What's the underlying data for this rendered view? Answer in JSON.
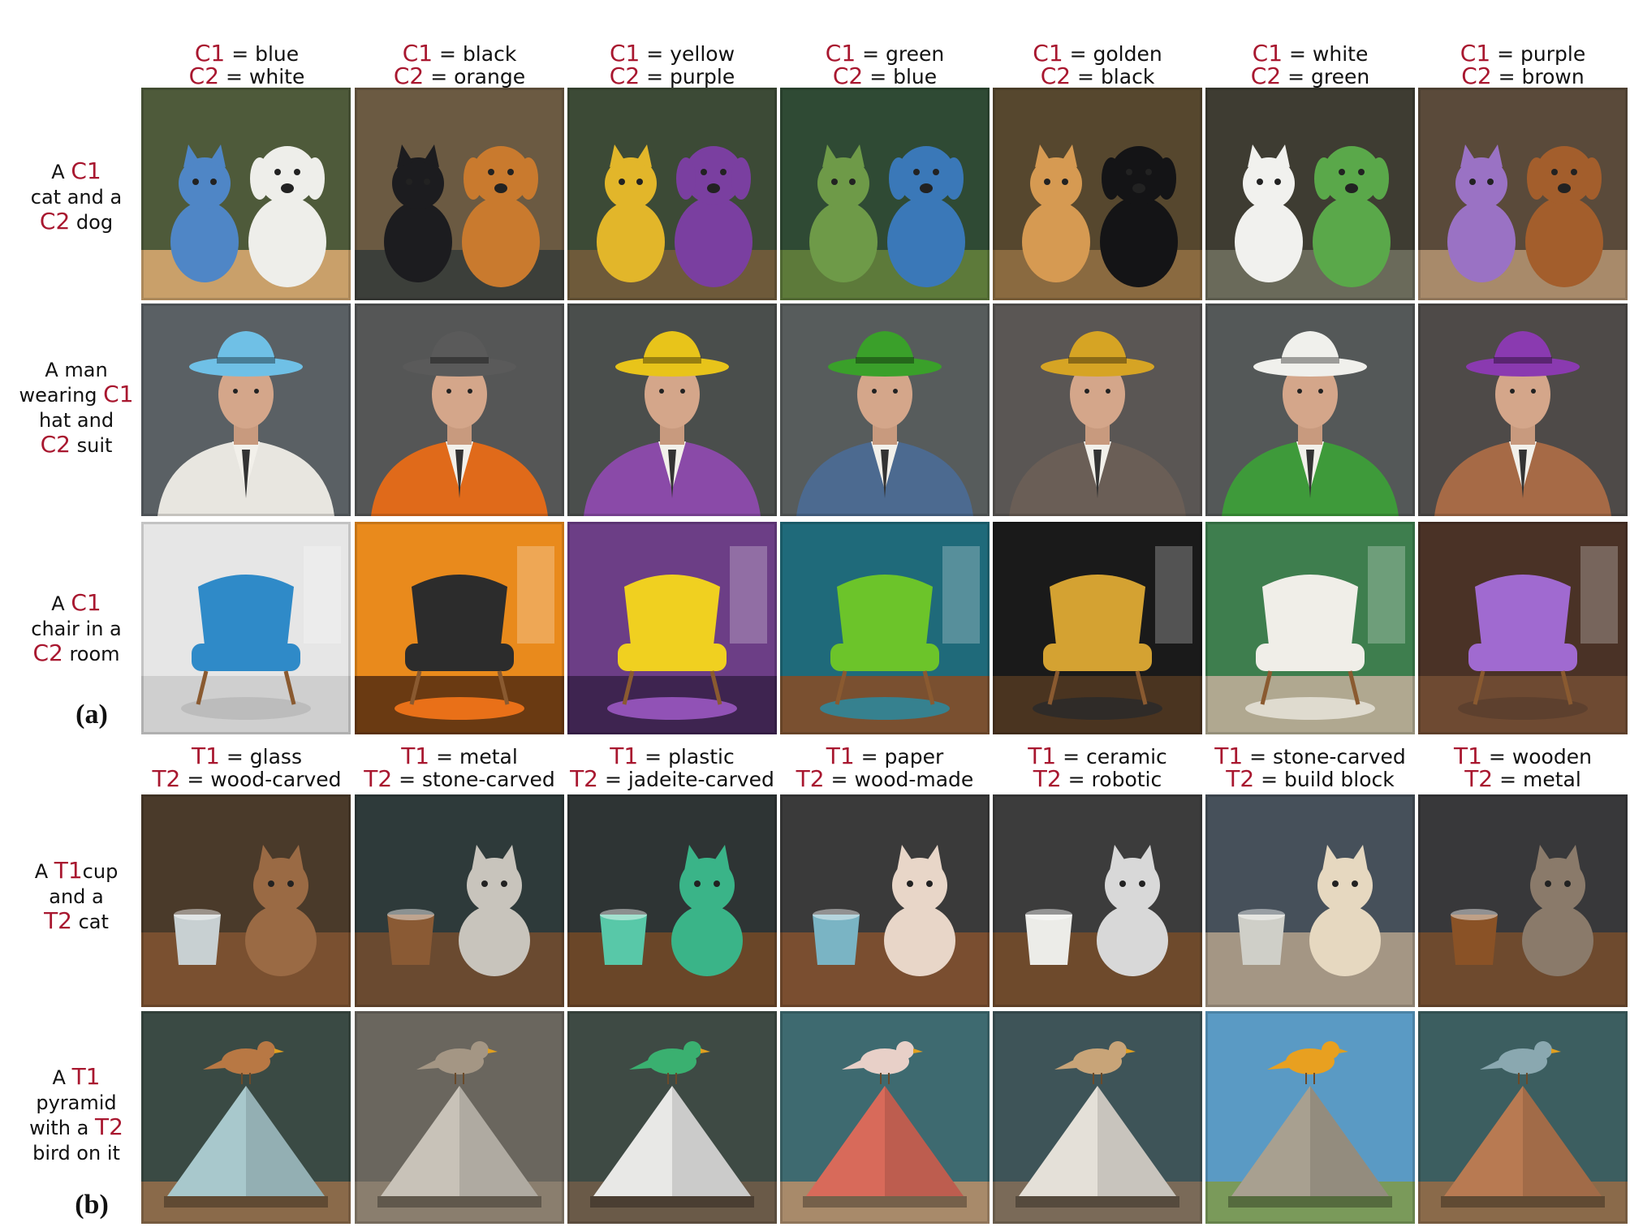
{
  "eq": "=",
  "part_a": {
    "label": "(a)",
    "headers": [
      {
        "k1": "C1",
        "v1": "blue",
        "k2": "C2",
        "v2": "white"
      },
      {
        "k1": "C1",
        "v1": "black",
        "k2": "C2",
        "v2": "orange"
      },
      {
        "k1": "C1",
        "v1": "yellow",
        "k2": "C2",
        "v2": "purple"
      },
      {
        "k1": "C1",
        "v1": "green",
        "k2": "C2",
        "v2": "blue"
      },
      {
        "k1": "C1",
        "v1": "golden",
        "k2": "C2",
        "v2": "black"
      },
      {
        "k1": "C1",
        "v1": "white",
        "k2": "C2",
        "v2": "green"
      },
      {
        "k1": "C1",
        "v1": "purple",
        "k2": "C2",
        "v2": "brown"
      }
    ],
    "rows": [
      {
        "lines": [
          {
            "pre": "A ",
            "key": "C1",
            "post": ""
          },
          {
            "pre": "cat and a",
            "key": "",
            "post": ""
          },
          {
            "pre": "",
            "key": "C2",
            "post": " dog"
          }
        ]
      },
      {
        "lines": [
          {
            "pre": "A man",
            "key": "",
            "post": ""
          },
          {
            "pre": "wearing ",
            "key": "C1",
            "post": ""
          },
          {
            "pre": "hat and",
            "key": "",
            "post": ""
          },
          {
            "pre": "",
            "key": "C2",
            "post": " suit"
          }
        ]
      },
      {
        "lines": [
          {
            "pre": "A ",
            "key": "C1",
            "post": ""
          },
          {
            "pre": "chair in a",
            "key": "",
            "post": ""
          },
          {
            "pre": "",
            "key": "C2",
            "post": " room"
          }
        ]
      }
    ]
  },
  "part_b": {
    "label": "(b)",
    "headers": [
      {
        "k1": "T1",
        "v1": "glass",
        "k2": "T2",
        "v2": "wood-carved"
      },
      {
        "k1": "T1",
        "v1": "metal",
        "k2": "T2",
        "v2": "stone-carved"
      },
      {
        "k1": "T1",
        "v1": "plastic",
        "k2": "T2",
        "v2": "jadeite-carved"
      },
      {
        "k1": "T1",
        "v1": "paper",
        "k2": "T2",
        "v2": "wood-made"
      },
      {
        "k1": "T1",
        "v1": "ceramic",
        "k2": "T2",
        "v2": "robotic"
      },
      {
        "k1": "T1",
        "v1": "stone-carved",
        "k2": "T2",
        "v2": "build block"
      },
      {
        "k1": "T1",
        "v1": "wooden",
        "k2": "T2",
        "v2": "metal"
      }
    ],
    "rows": [
      {
        "lines": [
          {
            "pre": "A ",
            "key": "T1",
            "post": "cup"
          },
          {
            "pre": "and a",
            "key": "",
            "post": ""
          },
          {
            "pre": "",
            "key": "T2",
            "post": " cat"
          }
        ]
      },
      {
        "lines": [
          {
            "pre": "A ",
            "key": "T1",
            "post": ""
          },
          {
            "pre": "pyramid",
            "key": "",
            "post": ""
          },
          {
            "pre": "with a ",
            "key": "T2",
            "post": ""
          },
          {
            "pre": "bird on it",
            "key": "",
            "post": ""
          }
        ]
      }
    ]
  },
  "images": {
    "row0": [
      {
        "bg": "#4e5a3a",
        "fg": "#c9a06a",
        "a": "#4f86c6",
        "b": "#eeeeea"
      },
      {
        "bg": "#6b5a42",
        "fg": "#3c3f3a",
        "a": "#1c1c1f",
        "b": "#c97a2e"
      },
      {
        "bg": "#3c4a36",
        "fg": "#6e5a3a",
        "a": "#e2b62a",
        "b": "#7a3fa0"
      },
      {
        "bg": "#2f4a34",
        "fg": "#5d7a3a",
        "a": "#6e9a48",
        "b": "#3a78b8"
      },
      {
        "bg": "#56472e",
        "fg": "#8a6a40",
        "a": "#d69a52",
        "b": "#141416"
      },
      {
        "bg": "#3e3c32",
        "fg": "#6a6a5a",
        "a": "#f1f1ee",
        "b": "#5aa84a"
      },
      {
        "bg": "#5a4a3a",
        "fg": "#a88a6a",
        "a": "#9a72c4",
        "b": "#a35e2c"
      }
    ],
    "row1": [
      {
        "bg": "#5a6064",
        "fg": "#3a3f44",
        "a": "#6fc0e6",
        "b": "#e8e6e0"
      },
      {
        "bg": "#555656",
        "fg": "#3a3a3a",
        "a": "#5a5a5a",
        "b": "#e06a1a"
      },
      {
        "bg": "#4a4e4c",
        "fg": "#303432",
        "a": "#e8c41a",
        "b": "#8a4aa8"
      },
      {
        "bg": "#575c5c",
        "fg": "#3a4040",
        "a": "#3aa02a",
        "b": "#4c6a90"
      },
      {
        "bg": "#5a5654",
        "fg": "#3a3634",
        "a": "#d6a424",
        "b": "#6a5e56"
      },
      {
        "bg": "#545858",
        "fg": "#383c3c",
        "a": "#f0f0ec",
        "b": "#3e9a3a"
      },
      {
        "bg": "#4e4a48",
        "fg": "#343030",
        "a": "#8a3ab0",
        "b": "#a66a46"
      }
    ],
    "row2": [
      {
        "bg": "#e6e6e6",
        "fg": "#cfcfcf",
        "a": "#2f8ac8",
        "b": "#b8b8b8"
      },
      {
        "bg": "#e98a1c",
        "fg": "#6a3a12",
        "a": "#2c2c2c",
        "b": "#ff7a1a"
      },
      {
        "bg": "#6c3e86",
        "fg": "#3e2450",
        "a": "#f0d020",
        "b": "#a05ac8"
      },
      {
        "bg": "#1f6a7a",
        "fg": "#7a5030",
        "a": "#6cc42a",
        "b": "#2a8aa0"
      },
      {
        "bg": "#1a1a1a",
        "fg": "#4a3420",
        "a": "#d4a232",
        "b": "#2a2a2a"
      },
      {
        "bg": "#3e7e4e",
        "fg": "#b0a890",
        "a": "#f0eee8",
        "b": "#e8e4da"
      },
      {
        "bg": "#4a3226",
        "fg": "#6e4a32",
        "a": "#a06ad0",
        "b": "#5a3e2e"
      }
    ],
    "row3": [
      {
        "bg": "#4a3a2a",
        "fg": "#7a5030",
        "a": "#c8d0d2",
        "b": "#9a6a44"
      },
      {
        "bg": "#2e3a3a",
        "fg": "#6a4a30",
        "a": "#8a5a34",
        "b": "#c8c4bc"
      },
      {
        "bg": "#2e3434",
        "fg": "#6a4628",
        "a": "#58c8a8",
        "b": "#3ab488"
      },
      {
        "bg": "#3a3a3a",
        "fg": "#7a4e30",
        "a": "#7ab4c4",
        "b": "#e8d6c8"
      },
      {
        "bg": "#3c3c3c",
        "fg": "#6e4a2c",
        "a": "#ecece8",
        "b": "#d8d8d8"
      },
      {
        "bg": "#46505a",
        "fg": "#a49684",
        "a": "#cfcfc8",
        "b": "#e6d8c0"
      },
      {
        "bg": "#38383a",
        "fg": "#6e4a2e",
        "a": "#8a5226",
        "b": "#8a7a6a"
      }
    ],
    "row4": [
      {
        "bg": "#3a4a44",
        "fg": "#8a6a4a",
        "a": "#a8c8cc",
        "b": "#b87844"
      },
      {
        "bg": "#6a665e",
        "fg": "#8a7e6e",
        "a": "#c8c2b8",
        "b": "#a49684"
      },
      {
        "bg": "#3e4a44",
        "fg": "#6a5a48",
        "a": "#e8e8e6",
        "b": "#3ab070"
      },
      {
        "bg": "#3e6a70",
        "fg": "#a88a6a",
        "a": "#d86a5a",
        "b": "#e8d0c8"
      },
      {
        "bg": "#3e5458",
        "fg": "#7a6a58",
        "a": "#e4e0d8",
        "b": "#c8a478"
      },
      {
        "bg": "#5a9ac4",
        "fg": "#7a9a5a",
        "a": "#a8a090",
        "b": "#e8a020"
      },
      {
        "bg": "#3c5e60",
        "fg": "#8a6a4a",
        "a": "#b87a52",
        "b": "#8aa8b0"
      }
    ]
  }
}
